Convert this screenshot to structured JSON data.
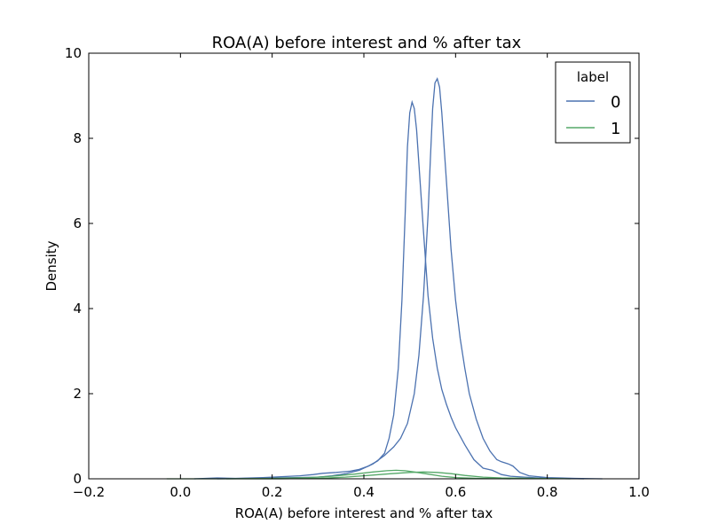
{
  "chart_data": {
    "type": "line",
    "title": "ROA(A) before interest and % after tax",
    "xlabel": "ROA(A) before interest and % after tax",
    "ylabel": "Density",
    "xlim": [
      -0.2,
      1.0
    ],
    "ylim": [
      0,
      10
    ],
    "xticks": [
      -0.2,
      0.0,
      0.2,
      0.4,
      0.6,
      0.8,
      1.0
    ],
    "xtick_labels": [
      "−0.2",
      "0.0",
      "0.2",
      "0.4",
      "0.6",
      "0.8",
      "1.0"
    ],
    "yticks": [
      0,
      2,
      4,
      6,
      8,
      10
    ],
    "ytick_labels": [
      "0",
      "2",
      "4",
      "6",
      "8",
      "10"
    ],
    "grid": false,
    "legend": {
      "title": "label",
      "placement": "top-right"
    },
    "series": [
      {
        "name": "0",
        "color": "#4c72b0",
        "points": [
          [
            0.03,
            0.0
          ],
          [
            0.08,
            0.02
          ],
          [
            0.12,
            0.01
          ],
          [
            0.18,
            0.03
          ],
          [
            0.22,
            0.05
          ],
          [
            0.26,
            0.07
          ],
          [
            0.29,
            0.1
          ],
          [
            0.31,
            0.13
          ],
          [
            0.34,
            0.15
          ],
          [
            0.37,
            0.18
          ],
          [
            0.39,
            0.22
          ],
          [
            0.41,
            0.3
          ],
          [
            0.43,
            0.42
          ],
          [
            0.445,
            0.6
          ],
          [
            0.455,
            0.95
          ],
          [
            0.465,
            1.5
          ],
          [
            0.475,
            2.6
          ],
          [
            0.483,
            4.2
          ],
          [
            0.49,
            6.2
          ],
          [
            0.495,
            7.8
          ],
          [
            0.5,
            8.6
          ],
          [
            0.505,
            8.85
          ],
          [
            0.51,
            8.7
          ],
          [
            0.515,
            8.2
          ],
          [
            0.52,
            7.4
          ],
          [
            0.53,
            5.8
          ],
          [
            0.54,
            4.3
          ],
          [
            0.55,
            3.3
          ],
          [
            0.56,
            2.6
          ],
          [
            0.57,
            2.1
          ],
          [
            0.58,
            1.75
          ],
          [
            0.59,
            1.45
          ],
          [
            0.6,
            1.2
          ],
          [
            0.62,
            0.8
          ],
          [
            0.64,
            0.45
          ],
          [
            0.66,
            0.25
          ],
          [
            0.68,
            0.2
          ],
          [
            0.7,
            0.1
          ],
          [
            0.72,
            0.06
          ],
          [
            0.75,
            0.04
          ],
          [
            0.78,
            0.02
          ],
          [
            0.82,
            0.01
          ],
          [
            0.88,
            0.0
          ]
        ]
      },
      {
        "name": "0",
        "color": "#4c72b0",
        "points": [
          [
            0.08,
            0.0
          ],
          [
            0.15,
            0.01
          ],
          [
            0.2,
            0.02
          ],
          [
            0.25,
            0.03
          ],
          [
            0.3,
            0.04
          ],
          [
            0.33,
            0.07
          ],
          [
            0.36,
            0.12
          ],
          [
            0.39,
            0.2
          ],
          [
            0.42,
            0.35
          ],
          [
            0.445,
            0.55
          ],
          [
            0.465,
            0.75
          ],
          [
            0.48,
            0.95
          ],
          [
            0.495,
            1.3
          ],
          [
            0.51,
            2.0
          ],
          [
            0.52,
            2.9
          ],
          [
            0.53,
            4.3
          ],
          [
            0.54,
            6.2
          ],
          [
            0.545,
            7.5
          ],
          [
            0.55,
            8.7
          ],
          [
            0.555,
            9.3
          ],
          [
            0.56,
            9.4
          ],
          [
            0.565,
            9.2
          ],
          [
            0.57,
            8.6
          ],
          [
            0.58,
            7.0
          ],
          [
            0.59,
            5.4
          ],
          [
            0.6,
            4.2
          ],
          [
            0.61,
            3.3
          ],
          [
            0.62,
            2.6
          ],
          [
            0.63,
            2.0
          ],
          [
            0.645,
            1.4
          ],
          [
            0.66,
            0.95
          ],
          [
            0.675,
            0.65
          ],
          [
            0.69,
            0.45
          ],
          [
            0.7,
            0.4
          ],
          [
            0.715,
            0.35
          ],
          [
            0.725,
            0.3
          ],
          [
            0.74,
            0.15
          ],
          [
            0.76,
            0.07
          ],
          [
            0.8,
            0.03
          ],
          [
            0.86,
            0.01
          ],
          [
            0.92,
            0.0
          ]
        ]
      },
      {
        "name": "1",
        "color": "#55a868",
        "points": [
          [
            -0.03,
            0.0
          ],
          [
            0.1,
            0.0
          ],
          [
            0.2,
            0.01
          ],
          [
            0.28,
            0.03
          ],
          [
            0.33,
            0.06
          ],
          [
            0.38,
            0.11
          ],
          [
            0.42,
            0.16
          ],
          [
            0.45,
            0.19
          ],
          [
            0.47,
            0.2
          ],
          [
            0.49,
            0.19
          ],
          [
            0.51,
            0.16
          ],
          [
            0.54,
            0.11
          ],
          [
            0.57,
            0.06
          ],
          [
            0.6,
            0.03
          ],
          [
            0.65,
            0.01
          ],
          [
            0.72,
            0.0
          ]
        ]
      },
      {
        "name": "1",
        "color": "#55a868",
        "points": [
          [
            0.1,
            0.0
          ],
          [
            0.22,
            0.0
          ],
          [
            0.3,
            0.01
          ],
          [
            0.36,
            0.04
          ],
          [
            0.41,
            0.08
          ],
          [
            0.46,
            0.12
          ],
          [
            0.5,
            0.15
          ],
          [
            0.53,
            0.16
          ],
          [
            0.56,
            0.15
          ],
          [
            0.59,
            0.12
          ],
          [
            0.62,
            0.08
          ],
          [
            0.66,
            0.04
          ],
          [
            0.7,
            0.02
          ],
          [
            0.78,
            0.01
          ],
          [
            0.85,
            0.0
          ]
        ]
      }
    ],
    "legend_entries": [
      {
        "label": "0",
        "color": "#4c72b0"
      },
      {
        "label": "1",
        "color": "#55a868"
      }
    ]
  }
}
